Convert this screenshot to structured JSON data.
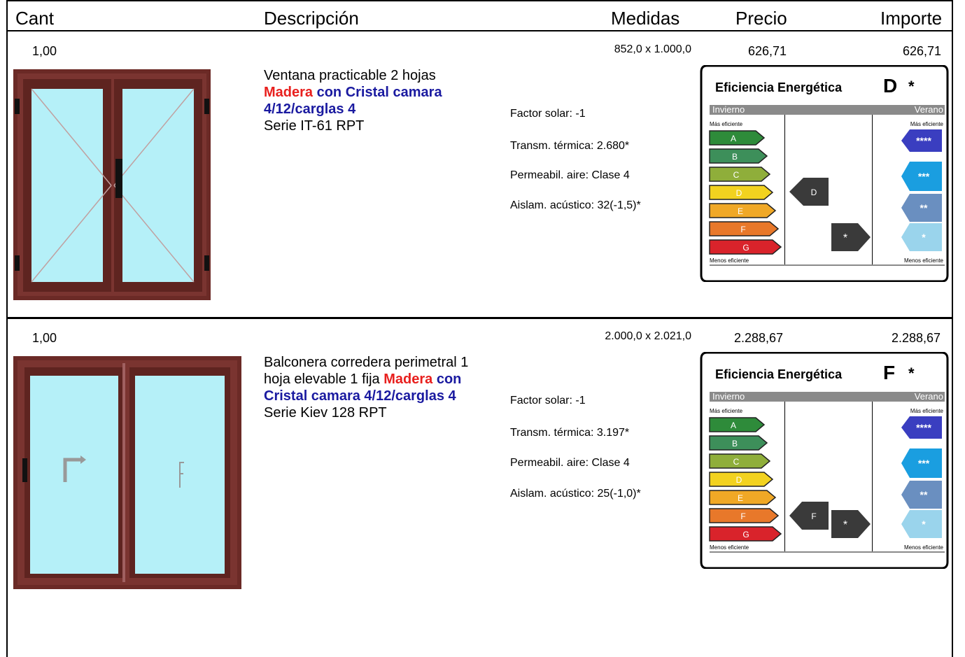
{
  "header": {
    "cant": "Cant",
    "descripcion": "Descripción",
    "medidas": "Medidas",
    "precio": "Precio",
    "importe": "Importe"
  },
  "items": [
    {
      "cant": "1,00",
      "medidas": "852,0 x 1.000,0",
      "precio": "626,71",
      "importe": "626,71",
      "desc_prefix": "Ventana practicable 2 hojas",
      "material": "Madera",
      "glass": "con Cristal camara 4/12/carglas 4",
      "serie": "Serie IT-61 RPT",
      "factor_solar": "Factor solar: -1",
      "transmitancia": "Transm. térmica: 2.680*",
      "permeabilidad": "Permeabil. aire: Clase 4",
      "acustico": "Aislam. acústico: 32(-1,5)*",
      "energy": {
        "title": "Eficiencia Energética",
        "grade": "D",
        "star": "*",
        "invierno": "Invierno",
        "verano": "Verano",
        "mas_eficiente_left": "Más eficiente",
        "mas_eficiente_right": "Más eficiente",
        "menos_eficiente_left": "Menos eficiente",
        "menos_eficiente_right": "Menos eficiente",
        "winter_pointer": "D",
        "summer_pointer": "*"
      }
    },
    {
      "cant": "1,00",
      "medidas": "2.000,0 x 2.021,0",
      "precio": "2.288,67",
      "importe": "2.288,67",
      "desc_prefix": "Balconera corredera perimetral 1 hoja elevable 1 fija",
      "material": "Madera",
      "glass": "con Cristal camara 4/12/carglas 4",
      "serie": "Serie Kiev 128 RPT",
      "factor_solar": "Factor solar: -1",
      "transmitancia": "Transm. térmica: 3.197*",
      "permeabilidad": "Permeabil. aire: Clase 4",
      "acustico": "Aislam. acústico: 25(-1,0)*",
      "energy": {
        "title": "Eficiencia Energética",
        "grade": "F",
        "star": "*",
        "invierno": "Invierno",
        "verano": "Verano",
        "mas_eficiente_left": "Más eficiente",
        "mas_eficiente_right": "Más eficiente",
        "menos_eficiente_left": "Menos eficiente",
        "menos_eficiente_right": "Menos eficiente",
        "winter_pointer": "F",
        "summer_pointer": "*"
      }
    }
  ],
  "scale": {
    "winter_classes": [
      "A",
      "B",
      "C",
      "D",
      "E",
      "F",
      "G"
    ],
    "summer_classes": [
      "****",
      "***",
      "**",
      "*"
    ],
    "colors": {
      "A": "#2e8b3a",
      "B": "#3d8f5a",
      "C": "#8fae3a",
      "D": "#f2d21f",
      "E": "#f0a826",
      "F": "#e8782a",
      "G": "#d9232b",
      "s4": "#3a3ec0",
      "s3": "#1a9ee0",
      "s2": "#6a8fc0",
      "s1": "#9ad4ec"
    },
    "frame_color": "#6b2a26",
    "glass_color": "#b5f0f8"
  }
}
